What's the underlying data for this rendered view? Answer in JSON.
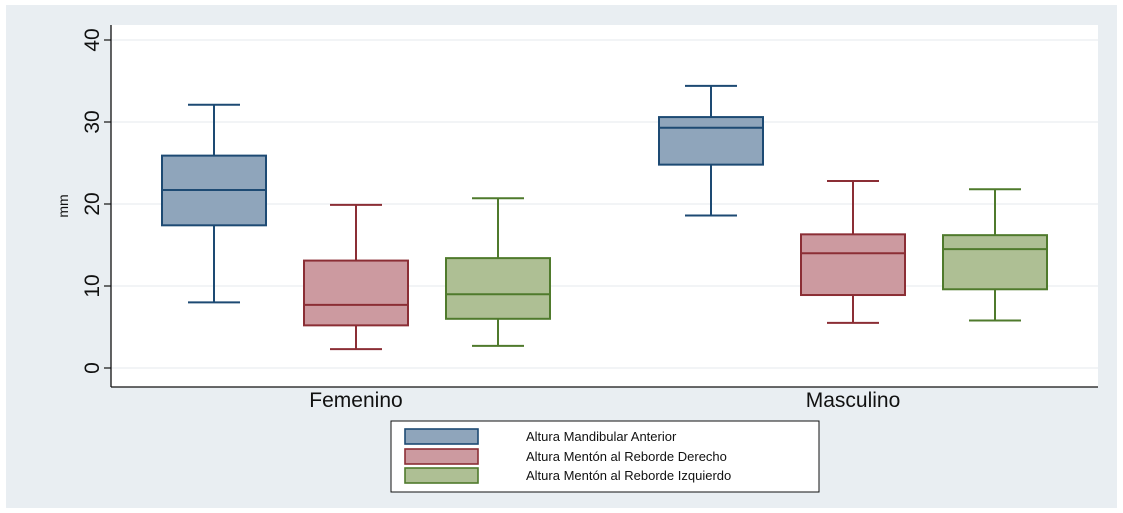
{
  "chart_data": {
    "type": "box",
    "ylabel": "mm",
    "ylim": [
      0,
      42
    ],
    "yticks": [
      "0",
      "10",
      "20",
      "30",
      "40"
    ],
    "categories": [
      "Femenino",
      "Masculino"
    ],
    "grid": true,
    "legend_position": "bottom-center",
    "series": [
      {
        "name": "Altura Mandibular Anterior",
        "fill": "#8fa5bb",
        "stroke": "#1d4a73",
        "values": [
          {
            "min": 8.0,
            "q1": 17.4,
            "median": 21.7,
            "q3": 25.9,
            "max": 32.1
          },
          {
            "min": 18.6,
            "q1": 24.8,
            "median": 29.3,
            "q3": 30.6,
            "max": 34.4
          }
        ]
      },
      {
        "name": "Altura Mentón al Reborde Derecho",
        "fill": "#cc9aa0",
        "stroke": "#8b2e35",
        "values": [
          {
            "min": 2.3,
            "q1": 5.2,
            "median": 7.7,
            "q3": 13.1,
            "max": 19.9
          },
          {
            "min": 5.5,
            "q1": 8.9,
            "median": 14.0,
            "q3": 16.3,
            "max": 22.8
          }
        ]
      },
      {
        "name": "Altura Mentón al Reborde Izquierdo",
        "fill": "#aebf94",
        "stroke": "#4f7a2c",
        "values": [
          {
            "min": 2.7,
            "q1": 6.0,
            "median": 9.0,
            "q3": 13.4,
            "max": 20.7
          },
          {
            "min": 5.8,
            "q1": 9.6,
            "median": 14.5,
            "q3": 16.2,
            "max": 21.8
          }
        ]
      }
    ]
  }
}
